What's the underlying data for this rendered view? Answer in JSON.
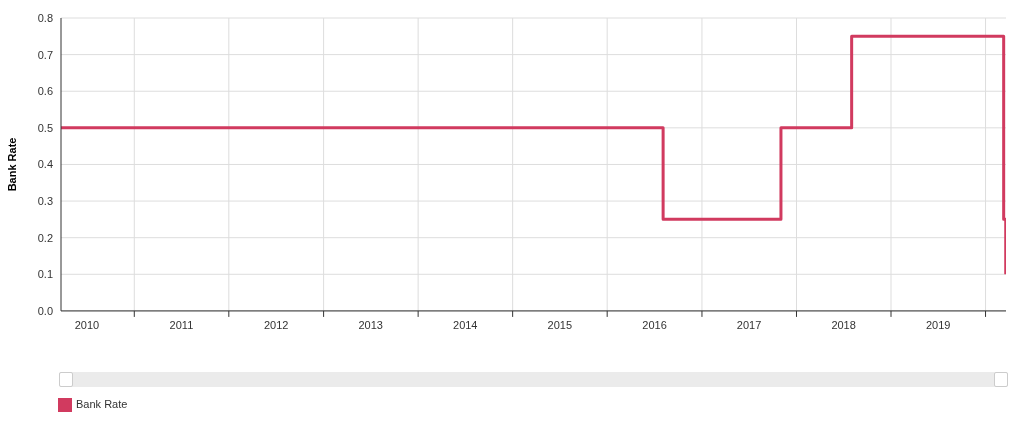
{
  "chart_data": {
    "type": "step",
    "ylabel": "Bank Rate",
    "x": [
      "2010-03-24",
      "2016-08-04",
      "2017-11-02",
      "2018-08-02",
      "2020-03-11",
      "2020-03-19"
    ],
    "series": [
      {
        "name": "Bank Rate",
        "color": "#d13a5f",
        "values": [
          0.5,
          0.25,
          0.5,
          0.75,
          0.25,
          0.1
        ]
      }
    ],
    "xlim": [
      "2010-03-24",
      "2020-03-20"
    ],
    "xticks": [
      {
        "value": "2010-07-02",
        "label": "2010"
      },
      {
        "value": "2011-01-01",
        "label": null
      },
      {
        "value": "2011-07-02",
        "label": "2011"
      },
      {
        "value": "2012-01-01",
        "label": null
      },
      {
        "value": "2012-07-02",
        "label": "2012"
      },
      {
        "value": "2013-01-01",
        "label": null
      },
      {
        "value": "2013-07-02",
        "label": "2013"
      },
      {
        "value": "2014-01-01",
        "label": null
      },
      {
        "value": "2014-07-02",
        "label": "2014"
      },
      {
        "value": "2015-01-01",
        "label": null
      },
      {
        "value": "2015-07-02",
        "label": "2015"
      },
      {
        "value": "2016-01-01",
        "label": null
      },
      {
        "value": "2016-07-02",
        "label": "2016"
      },
      {
        "value": "2017-01-01",
        "label": null
      },
      {
        "value": "2017-07-02",
        "label": "2017"
      },
      {
        "value": "2018-01-01",
        "label": null
      },
      {
        "value": "2018-07-02",
        "label": "2018"
      },
      {
        "value": "2019-01-01",
        "label": null
      },
      {
        "value": "2019-07-02",
        "label": "2019"
      },
      {
        "value": "2020-01-01",
        "label": null
      }
    ],
    "ylim": [
      0,
      0.8
    ],
    "yticks": [
      {
        "value": 0,
        "label": "0.0"
      },
      0.1,
      0.2,
      0.3,
      0.4,
      0.5,
      0.6,
      0.7,
      0.8
    ],
    "grid": true,
    "legend": "bottom left",
    "marker": "none",
    "line_style": "solid"
  }
}
